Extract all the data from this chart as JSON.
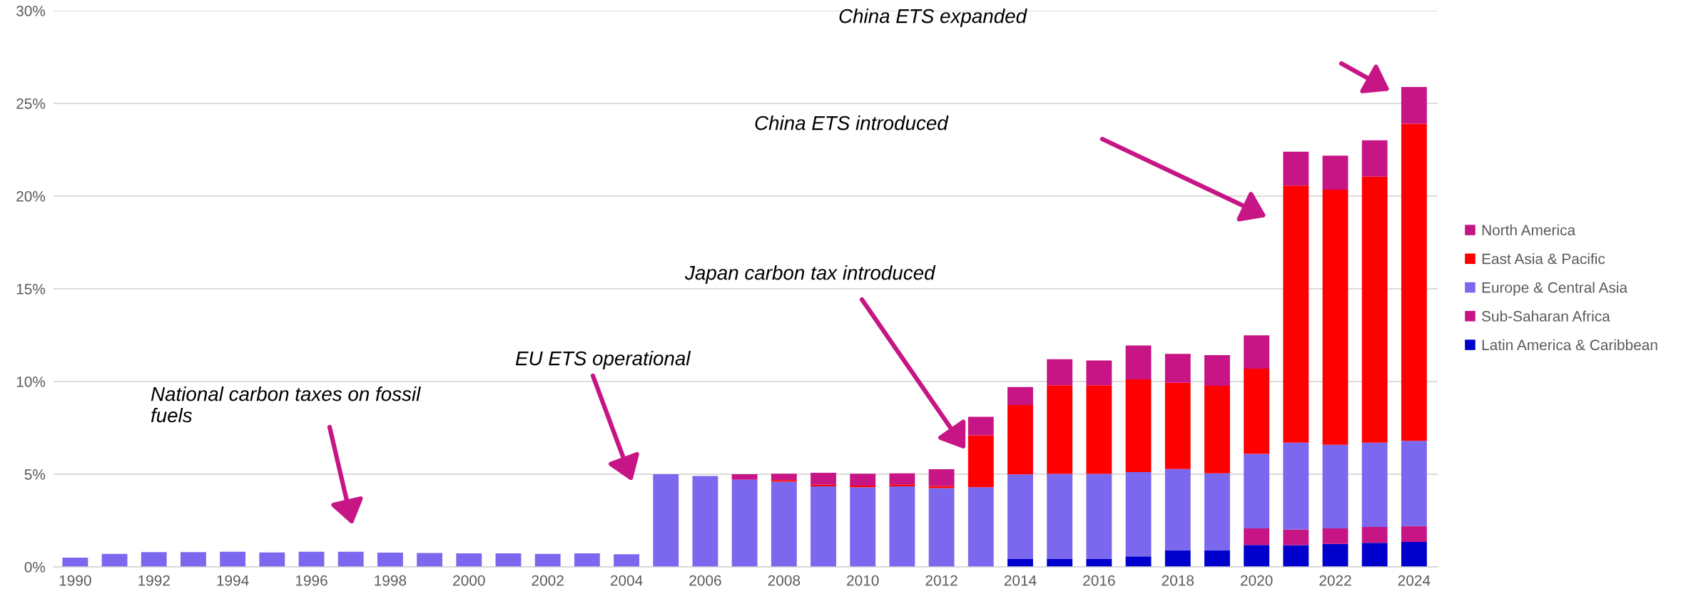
{
  "chart_data": {
    "type": "bar",
    "stacked": true,
    "x": [
      1990,
      1991,
      1992,
      1993,
      1994,
      1995,
      1996,
      1997,
      1998,
      1999,
      2000,
      2001,
      2002,
      2003,
      2004,
      2005,
      2006,
      2007,
      2008,
      2009,
      2010,
      2011,
      2012,
      2013,
      2014,
      2015,
      2016,
      2017,
      2018,
      2019,
      2020,
      2021,
      2022,
      2023,
      2024
    ],
    "series": [
      {
        "name": "Latin America & Caribbean",
        "color": "#0000cd",
        "values": [
          0,
          0,
          0,
          0,
          0,
          0,
          0,
          0,
          0,
          0,
          0,
          0,
          0,
          0,
          0,
          0,
          0,
          0,
          0,
          0,
          0,
          0,
          0,
          0,
          0.42,
          0.42,
          0.42,
          0.57,
          0.9,
          0.9,
          1.18,
          1.17,
          1.24,
          1.3,
          1.35
        ]
      },
      {
        "name": "Sub-Saharan Africa",
        "color": "#c71585",
        "values": [
          0,
          0,
          0,
          0,
          0,
          0,
          0,
          0,
          0,
          0,
          0,
          0,
          0,
          0,
          0,
          0,
          0,
          0,
          0,
          0,
          0,
          0,
          0,
          0,
          0,
          0,
          0,
          0,
          0,
          0,
          0.9,
          0.85,
          0.84,
          0.85,
          0.85
        ]
      },
      {
        "name": "Europe & Central Asia",
        "color": "#7b68ee",
        "values": [
          0.5,
          0.7,
          0.8,
          0.8,
          0.82,
          0.78,
          0.82,
          0.82,
          0.77,
          0.75,
          0.73,
          0.73,
          0.7,
          0.73,
          0.68,
          5.0,
          4.9,
          4.7,
          4.6,
          4.35,
          4.3,
          4.35,
          4.25,
          4.3,
          4.57,
          4.6,
          4.6,
          4.55,
          4.38,
          4.15,
          4.02,
          4.68,
          4.51,
          4.55,
          4.6
        ]
      },
      {
        "name": "East Asia & Pacific",
        "color": "#ff0000",
        "values": [
          0,
          0,
          0,
          0,
          0,
          0,
          0,
          0,
          0,
          0,
          0,
          0,
          0,
          0,
          0,
          0,
          0,
          0,
          0.08,
          0.08,
          0.08,
          0.1,
          0.12,
          2.8,
          3.74,
          4.78,
          4.78,
          5.0,
          4.65,
          4.72,
          4.59,
          13.87,
          13.76,
          14.35,
          17.1
        ]
      },
      {
        "name": "North America",
        "color": "#c71585",
        "values": [
          0,
          0,
          0,
          0,
          0,
          0,
          0,
          0,
          0,
          0,
          0,
          0,
          0,
          0,
          0,
          0,
          0,
          0.3,
          0.35,
          0.65,
          0.65,
          0.6,
          0.9,
          1.0,
          0.97,
          1.4,
          1.33,
          1.82,
          1.56,
          1.65,
          1.8,
          1.82,
          1.83,
          1.96,
          1.98
        ]
      }
    ],
    "xlim": [
      1989.45,
      2024.6
    ],
    "xticks": [
      1990,
      1992,
      1994,
      1996,
      1998,
      2000,
      2002,
      2004,
      2006,
      2008,
      2010,
      2012,
      2014,
      2016,
      2018,
      2020,
      2022,
      2024
    ],
    "ylim": [
      0,
      30
    ],
    "yticks": [
      {
        "value": 0,
        "label": "0%"
      },
      {
        "value": 5,
        "label": "5%"
      },
      {
        "value": 10,
        "label": "10%"
      },
      {
        "value": 15,
        "label": "15%"
      },
      {
        "value": 20,
        "label": "20%"
      },
      {
        "value": 25,
        "label": "25%"
      },
      {
        "value": 30,
        "label": "30%"
      }
    ],
    "grid": "y",
    "legend": "right",
    "annotations": [
      "National carbon taxes on fossil\nfuels",
      "EU ETS operational",
      "Japan carbon tax introduced",
      "China ETS introduced",
      "China ETS expanded"
    ]
  }
}
